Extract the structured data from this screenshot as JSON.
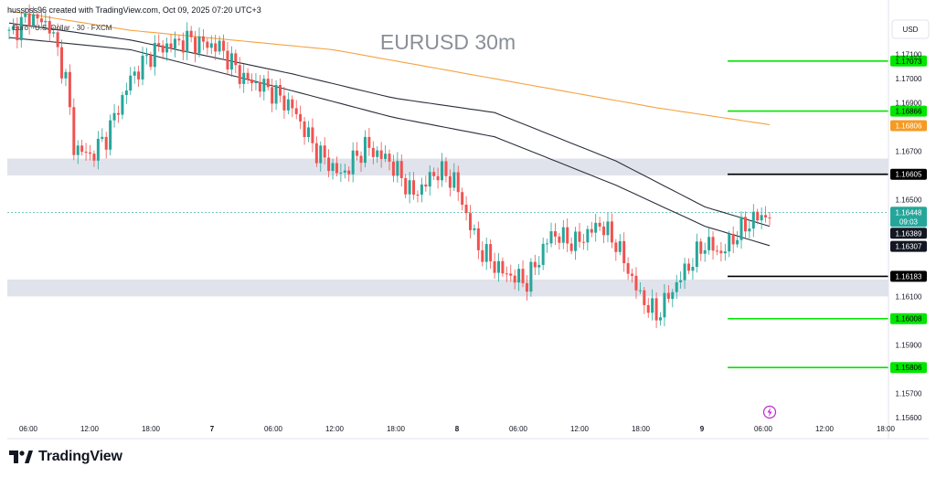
{
  "header": {
    "attribution": "hussoss96 created with TradingView.com, Oct 09, 2025 07:20 UTC+3",
    "legend": "Euro · U.S. Dollar · 30 · FXCM",
    "brand": "TradingView"
  },
  "chart_data": {
    "type": "candlestick",
    "title": "EURUSD 30m",
    "currency": "USD",
    "y_ticks": [
      "1.17100",
      "1.17000",
      "1.16900",
      "1.16700",
      "1.16500",
      "1.16100",
      "1.15900",
      "1.15700",
      "1.15600"
    ],
    "y_range": [
      1.1555,
      1.1728
    ],
    "x_ticks": [
      "06:00",
      "12:00",
      "18:00",
      "7",
      "06:00",
      "12:00",
      "18:00",
      "8",
      "06:00",
      "12:00",
      "18:00",
      "9",
      "06:00",
      "12:00",
      "18:00"
    ],
    "zones": [
      {
        "from": 1.166,
        "to": 1.1667,
        "color": "#e0e3eb"
      },
      {
        "from": 1.161,
        "to": 1.1617,
        "color": "#e0e3eb"
      }
    ],
    "levels": [
      {
        "value": 1.17073,
        "label": "1.17073",
        "color": "#00e600"
      },
      {
        "value": 1.16866,
        "label": "1.16866",
        "color": "#00e600"
      },
      {
        "value": 1.16605,
        "label": "1.16605",
        "color": "#000000"
      },
      {
        "value": 1.16183,
        "label": "1.16183",
        "color": "#000000"
      },
      {
        "value": 1.16008,
        "label": "1.16008",
        "color": "#00e600"
      },
      {
        "value": 1.15806,
        "label": "1.15806",
        "color": "#00e600"
      }
    ],
    "price_badges": [
      {
        "value": 1.16806,
        "label": "1.16806",
        "color": "#f59b24"
      },
      {
        "value": 1.16448,
        "label": "1.16448",
        "sub": "09:03",
        "color": "#26a69a"
      },
      {
        "value": 1.16389,
        "label": "1.16389",
        "color": "#131722"
      },
      {
        "value": 1.16307,
        "label": "1.16307",
        "color": "#131722"
      }
    ],
    "last_price": 1.16448,
    "candle_anchors": [
      [
        0,
        1.1718
      ],
      [
        5,
        1.1726
      ],
      [
        10,
        1.1722
      ],
      [
        14,
        1.17
      ],
      [
        16,
        1.1672
      ],
      [
        20,
        1.1668
      ],
      [
        24,
        1.1676
      ],
      [
        30,
        1.17
      ],
      [
        36,
        1.1712
      ],
      [
        44,
        1.1716
      ],
      [
        52,
        1.1713
      ],
      [
        58,
        1.17
      ],
      [
        64,
        1.1696
      ],
      [
        70,
        1.1688
      ],
      [
        76,
        1.167
      ],
      [
        82,
        1.166
      ],
      [
        88,
        1.1672
      ],
      [
        94,
        1.1666
      ],
      [
        100,
        1.1652
      ],
      [
        106,
        1.1662
      ],
      [
        110,
        1.1658
      ],
      [
        116,
        1.163
      ],
      [
        122,
        1.162
      ],
      [
        128,
        1.1616
      ],
      [
        134,
        1.1636
      ],
      [
        140,
        1.1632
      ],
      [
        146,
        1.164
      ],
      [
        150,
        1.1632
      ],
      [
        156,
        1.161
      ],
      [
        160,
        1.1602
      ],
      [
        166,
        1.1618
      ],
      [
        172,
        1.1632
      ],
      [
        176,
        1.1628
      ],
      [
        180,
        1.1636
      ],
      [
        184,
        1.1642
      ],
      [
        188,
        1.1644
      ]
    ],
    "ma_orange": [
      [
        0,
        1.1728
      ],
      [
        30,
        1.172
      ],
      [
        80,
        1.1712
      ],
      [
        120,
        1.17
      ],
      [
        160,
        1.1688
      ],
      [
        188,
        1.1681
      ]
    ],
    "ma_black_1": [
      [
        0,
        1.1723
      ],
      [
        30,
        1.1716
      ],
      [
        70,
        1.1702
      ],
      [
        95,
        1.1692
      ],
      [
        120,
        1.1686
      ],
      [
        150,
        1.1666
      ],
      [
        172,
        1.1647
      ],
      [
        188,
        1.1639
      ]
    ],
    "ma_black_2": [
      [
        0,
        1.1717
      ],
      [
        30,
        1.1712
      ],
      [
        70,
        1.1695
      ],
      [
        95,
        1.1684
      ],
      [
        120,
        1.1676
      ],
      [
        150,
        1.1656
      ],
      [
        172,
        1.1639
      ],
      [
        188,
        1.1631
      ]
    ]
  }
}
